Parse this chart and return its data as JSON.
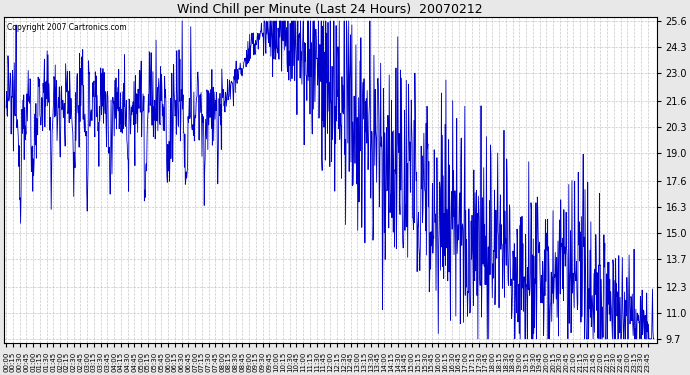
{
  "title": "Wind Chill per Minute (Last 24 Hours)  20070212",
  "copyright_text": "Copyright 2007 Cartronics.com",
  "line_color": "#0000CC",
  "background_color": "#E8E8E8",
  "plot_bg_color": "#FFFFFF",
  "grid_color": "#BBBBBB",
  "ytick_labels": [
    9.7,
    11.0,
    12.3,
    13.7,
    15.0,
    16.3,
    17.6,
    19.0,
    20.3,
    21.6,
    23.0,
    24.3,
    25.6
  ],
  "ylim_min": 9.5,
  "ylim_max": 25.8,
  "total_minutes": 1440,
  "figwidth": 6.9,
  "figheight": 3.75,
  "dpi": 100
}
